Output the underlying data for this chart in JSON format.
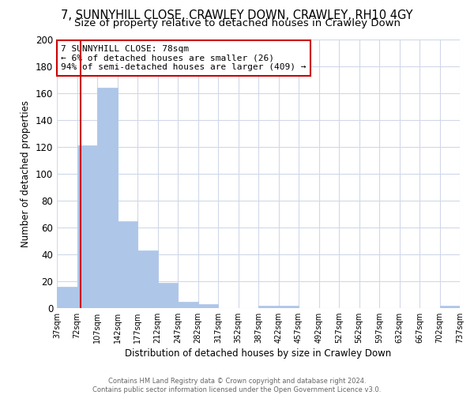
{
  "title": "7, SUNNYHILL CLOSE, CRAWLEY DOWN, CRAWLEY, RH10 4GY",
  "subtitle": "Size of property relative to detached houses in Crawley Down",
  "xlabel": "Distribution of detached houses by size in Crawley Down",
  "ylabel": "Number of detached properties",
  "bar_edges": [
    37,
    72,
    107,
    142,
    177,
    212,
    247,
    282,
    317,
    352,
    387,
    422,
    457,
    492,
    527,
    562,
    597,
    632,
    667,
    702,
    737
  ],
  "bar_heights": [
    16,
    121,
    164,
    65,
    43,
    19,
    5,
    3,
    0,
    0,
    2,
    2,
    0,
    0,
    0,
    0,
    0,
    0,
    0,
    2
  ],
  "bar_color": "#aec6e8",
  "bar_edgecolor": "#aec6e8",
  "vline_x": 78,
  "vline_color": "#cc0000",
  "ylim": [
    0,
    200
  ],
  "yticks": [
    0,
    20,
    40,
    60,
    80,
    100,
    120,
    140,
    160,
    180,
    200
  ],
  "xlim": [
    37,
    737
  ],
  "xtick_labels": [
    "37sqm",
    "72sqm",
    "107sqm",
    "142sqm",
    "177sqm",
    "212sqm",
    "247sqm",
    "282sqm",
    "317sqm",
    "352sqm",
    "387sqm",
    "422sqm",
    "457sqm",
    "492sqm",
    "527sqm",
    "562sqm",
    "597sqm",
    "632sqm",
    "667sqm",
    "702sqm",
    "737sqm"
  ],
  "xtick_positions": [
    37,
    72,
    107,
    142,
    177,
    212,
    247,
    282,
    317,
    352,
    387,
    422,
    457,
    492,
    527,
    562,
    597,
    632,
    667,
    702,
    737
  ],
  "annotation_title": "7 SUNNYHILL CLOSE: 78sqm",
  "annotation_line1": "← 6% of detached houses are smaller (26)",
  "annotation_line2": "94% of semi-detached houses are larger (409) →",
  "annotation_box_color": "#ffffff",
  "annotation_box_edgecolor": "#cc0000",
  "footer_line1": "Contains HM Land Registry data © Crown copyright and database right 2024.",
  "footer_line2": "Contains public sector information licensed under the Open Government Licence v3.0.",
  "background_color": "#ffffff",
  "grid_color": "#d0d8e8",
  "title_fontsize": 10.5,
  "subtitle_fontsize": 9.5
}
